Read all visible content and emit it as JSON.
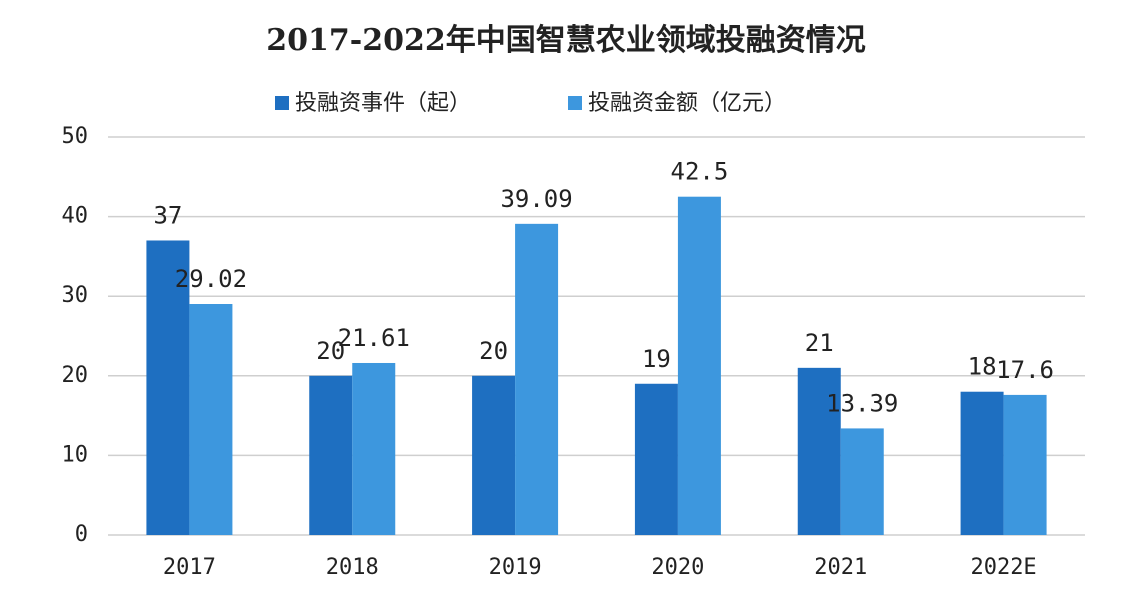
{
  "chart_data": {
    "type": "bar",
    "title": "2017-2022年中国智慧农业领域投融资情况",
    "categories": [
      "2017",
      "2018",
      "2019",
      "2020",
      "2021",
      "2022E"
    ],
    "series": [
      {
        "name": "投融资事件（起）",
        "color": "#1e6fc1",
        "values": [
          37,
          20,
          20,
          19,
          21,
          18
        ]
      },
      {
        "name": "投融资金额（亿元）",
        "color": "#3d97de",
        "values": [
          29.02,
          21.61,
          39.09,
          42.5,
          13.39,
          17.6
        ]
      }
    ],
    "ylim": [
      0,
      50
    ],
    "yticks": [
      0,
      10,
      20,
      30,
      40,
      50
    ],
    "grid": true,
    "legend": "top"
  }
}
